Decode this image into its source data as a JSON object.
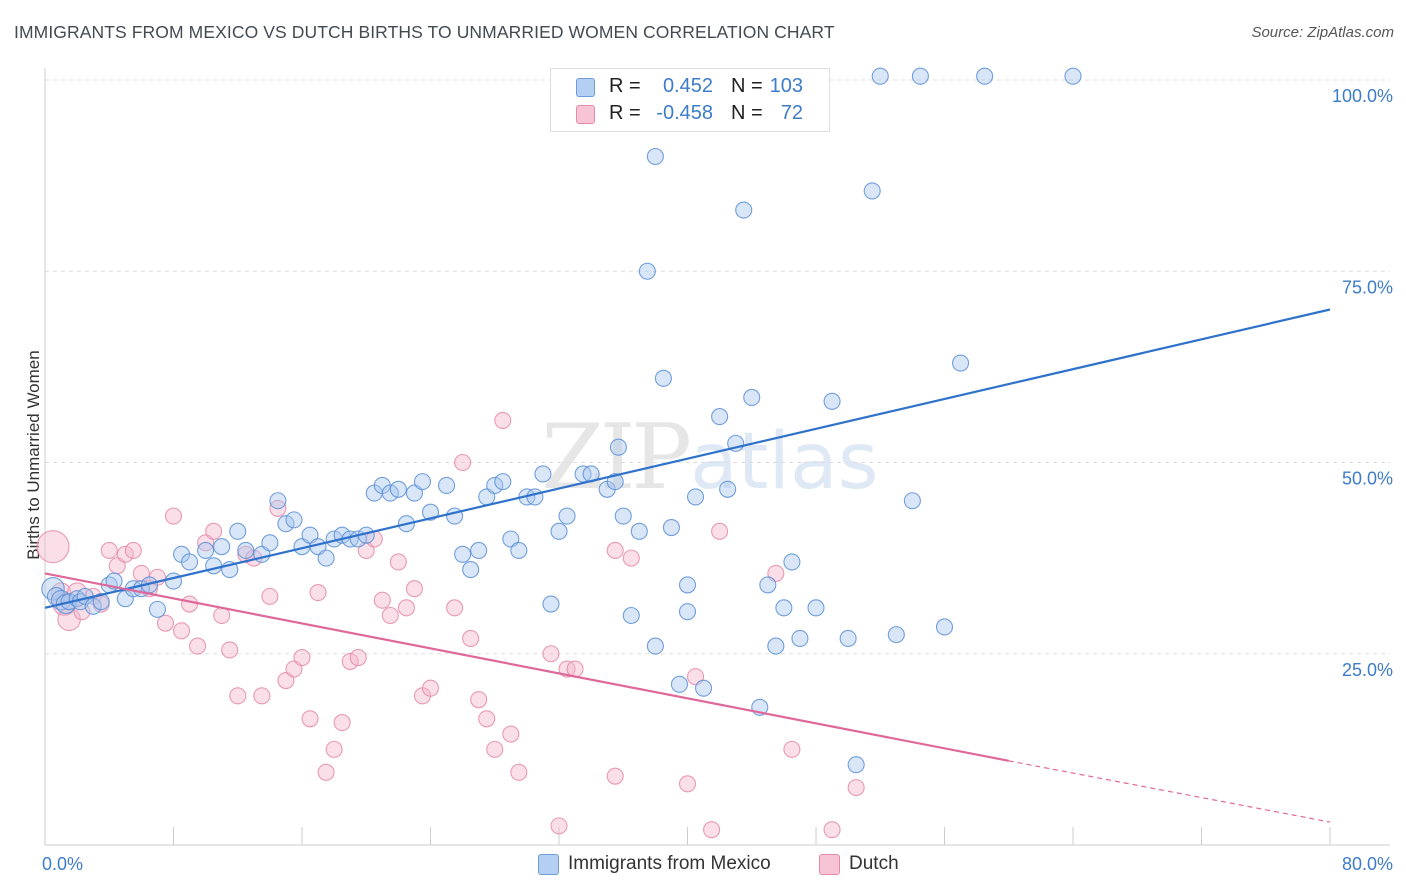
{
  "title": "IMMIGRANTS FROM MEXICO VS DUTCH BIRTHS TO UNMARRIED WOMEN CORRELATION CHART",
  "source": "Source: ZipAtlas.com",
  "watermark": {
    "zip": "ZIP",
    "atlas": "atlas"
  },
  "legend_top": {
    "rows": [
      {
        "r_label": "R =",
        "r_value": "0.452",
        "n_label": "N =",
        "n_value": "103"
      },
      {
        "r_label": "R =",
        "r_value": "-0.458",
        "n_label": "N =",
        "n_value": "72"
      }
    ]
  },
  "legend_bottom": {
    "items": [
      {
        "label": "Immigrants from Mexico"
      },
      {
        "label": "Dutch"
      }
    ]
  },
  "colors": {
    "blue_fill": "#a9c8f0",
    "blue_stroke": "#5b8fd6",
    "blue_line": "#2f72cc",
    "pink_fill": "#f5b8cc",
    "pink_stroke": "#e58aa9",
    "pink_line": "#e0679a",
    "tick_label": "#3d7cc9",
    "grid": "#dddddd"
  },
  "chart_data": {
    "type": "scatter",
    "title": "IMMIGRANTS FROM MEXICO VS DUTCH BIRTHS TO UNMARRIED WOMEN CORRELATION CHART",
    "xlabel": "",
    "ylabel": "Births to Unmarried Women",
    "xlim": [
      0,
      80
    ],
    "ylim": [
      0,
      100
    ],
    "x_tick_labels": [
      "0.0%",
      "80.0%"
    ],
    "y_ticks": [
      25,
      50,
      75,
      100
    ],
    "y_tick_labels": [
      "25.0%",
      "50.0%",
      "75.0%",
      "100.0%"
    ],
    "grid": true,
    "series": [
      {
        "name": "Immigrants from Mexico",
        "trend": {
          "x": [
            0,
            80
          ],
          "y": [
            31.0,
            70.0
          ]
        },
        "points": [
          [
            0.5,
            33.5,
            14
          ],
          [
            0.7,
            32.5,
            11
          ],
          [
            1.0,
            32.0,
            12
          ],
          [
            1.3,
            31.5,
            12
          ],
          [
            1.5,
            31.8,
            10
          ],
          [
            2.0,
            32.2,
            10
          ],
          [
            2.2,
            31.8,
            10
          ],
          [
            2.5,
            32.5,
            10
          ],
          [
            3.0,
            31.2,
            10
          ],
          [
            3.5,
            31.8,
            10
          ],
          [
            4.0,
            34.0,
            10
          ],
          [
            4.3,
            34.5,
            10
          ],
          [
            5.0,
            32.2,
            10
          ],
          [
            5.5,
            33.5,
            10
          ],
          [
            6.0,
            33.5,
            10
          ],
          [
            6.5,
            34.0,
            10
          ],
          [
            7.0,
            30.8,
            10
          ],
          [
            8.0,
            34.5,
            10
          ],
          [
            8.5,
            38.0,
            10
          ],
          [
            9.0,
            37.0,
            10
          ],
          [
            10.0,
            38.5,
            10
          ],
          [
            10.5,
            36.5,
            10
          ],
          [
            11.0,
            39.0,
            10
          ],
          [
            11.5,
            36.0,
            10
          ],
          [
            12.0,
            41.0,
            10
          ],
          [
            12.5,
            38.5,
            10
          ],
          [
            13.5,
            38.0,
            10
          ],
          [
            14.0,
            39.5,
            10
          ],
          [
            14.5,
            45.0,
            10
          ],
          [
            15.0,
            42.0,
            10
          ],
          [
            15.5,
            42.5,
            10
          ],
          [
            16.0,
            39.0,
            10
          ],
          [
            16.5,
            40.5,
            10
          ],
          [
            17.0,
            39.0,
            10
          ],
          [
            17.5,
            37.5,
            10
          ],
          [
            18.0,
            40.0,
            10
          ],
          [
            18.5,
            40.5,
            10
          ],
          [
            19.0,
            40.0,
            10
          ],
          [
            19.5,
            40.0,
            10
          ],
          [
            20.0,
            40.5,
            10
          ],
          [
            20.5,
            46.0,
            10
          ],
          [
            21.0,
            47.0,
            10
          ],
          [
            21.5,
            46.0,
            10
          ],
          [
            22.0,
            46.5,
            10
          ],
          [
            22.5,
            42.0,
            10
          ],
          [
            23.0,
            46.0,
            10
          ],
          [
            23.5,
            47.5,
            10
          ],
          [
            24.0,
            43.5,
            10
          ],
          [
            25.0,
            47.0,
            10
          ],
          [
            25.5,
            43.0,
            10
          ],
          [
            26.0,
            38.0,
            10
          ],
          [
            26.5,
            36.0,
            10
          ],
          [
            27.0,
            38.5,
            10
          ],
          [
            27.5,
            45.5,
            10
          ],
          [
            28.0,
            47.0,
            10
          ],
          [
            28.5,
            47.5,
            10
          ],
          [
            29.0,
            40.0,
            10
          ],
          [
            29.5,
            38.5,
            10
          ],
          [
            30.0,
            45.5,
            10
          ],
          [
            30.5,
            45.5,
            10
          ],
          [
            31.0,
            48.5,
            10
          ],
          [
            31.5,
            31.5,
            10
          ],
          [
            32.0,
            41.0,
            10
          ],
          [
            32.5,
            43.0,
            10
          ],
          [
            33.5,
            48.5,
            10
          ],
          [
            34.0,
            48.5,
            10
          ],
          [
            35.0,
            46.5,
            10
          ],
          [
            35.5,
            47.5,
            10
          ],
          [
            35.7,
            52.0,
            10
          ],
          [
            36.0,
            43.0,
            10
          ],
          [
            36.5,
            30.0,
            10
          ],
          [
            37.0,
            41.0,
            10
          ],
          [
            38.0,
            26.0,
            10
          ],
          [
            38.5,
            61.0,
            10
          ],
          [
            37.5,
            75.0,
            10
          ],
          [
            38.0,
            90.0,
            10
          ],
          [
            39.0,
            41.5,
            10
          ],
          [
            39.5,
            21.0,
            10
          ],
          [
            40.0,
            34.0,
            10
          ],
          [
            40.5,
            45.5,
            10
          ],
          [
            41.0,
            20.5,
            10
          ],
          [
            42.0,
            56.0,
            10
          ],
          [
            42.5,
            46.5,
            10
          ],
          [
            43.0,
            52.5,
            10
          ],
          [
            43.5,
            83.0,
            10
          ],
          [
            44.0,
            58.5,
            10
          ],
          [
            44.5,
            18.0,
            10
          ],
          [
            45.0,
            34.0,
            10
          ],
          [
            45.5,
            26.0,
            10
          ],
          [
            46.0,
            31.0,
            10
          ],
          [
            46.5,
            37.0,
            10
          ],
          [
            47.0,
            27.0,
            10
          ],
          [
            48.0,
            31.0,
            10
          ],
          [
            49.0,
            58.0,
            10
          ],
          [
            50.0,
            27.0,
            10
          ],
          [
            50.5,
            10.5,
            10
          ],
          [
            51.5,
            85.5,
            10
          ],
          [
            52.0,
            100.5,
            10
          ],
          [
            53.0,
            27.5,
            10
          ],
          [
            54.0,
            45.0,
            10
          ],
          [
            54.5,
            100.5,
            10
          ],
          [
            56.0,
            28.5,
            10
          ],
          [
            57.0,
            63.0,
            10
          ],
          [
            58.5,
            100.5,
            10
          ],
          [
            64.0,
            100.5,
            10
          ],
          [
            40.0,
            30.5,
            10
          ]
        ]
      },
      {
        "name": "Dutch",
        "trend": {
          "x": [
            0,
            60
          ],
          "y": [
            35.5,
            11.0
          ]
        },
        "trend_dashed": {
          "x": [
            60,
            80
          ],
          "y": [
            11.0,
            3.0
          ]
        },
        "points": [
          [
            0.5,
            39.0,
            20
          ],
          [
            1.0,
            33.0,
            12
          ],
          [
            1.2,
            31.5,
            14
          ],
          [
            1.5,
            29.5,
            14
          ],
          [
            2.0,
            33.0,
            12
          ],
          [
            2.3,
            30.5,
            10
          ],
          [
            3.0,
            32.5,
            10
          ],
          [
            3.5,
            31.5,
            10
          ],
          [
            4.0,
            38.5,
            10
          ],
          [
            4.5,
            36.5,
            10
          ],
          [
            5.0,
            38.0,
            10
          ],
          [
            5.5,
            38.5,
            10
          ],
          [
            6.0,
            35.5,
            10
          ],
          [
            6.5,
            33.5,
            10
          ],
          [
            7.0,
            35.0,
            10
          ],
          [
            7.5,
            29.0,
            10
          ],
          [
            8.0,
            43.0,
            10
          ],
          [
            8.5,
            28.0,
            10
          ],
          [
            9.0,
            31.5,
            10
          ],
          [
            9.5,
            26.0,
            10
          ],
          [
            10.0,
            39.5,
            10
          ],
          [
            10.5,
            41.0,
            10
          ],
          [
            11.0,
            30.0,
            10
          ],
          [
            11.5,
            25.5,
            10
          ],
          [
            12.0,
            19.5,
            10
          ],
          [
            12.5,
            38.0,
            10
          ],
          [
            13.0,
            37.5,
            10
          ],
          [
            13.5,
            19.5,
            10
          ],
          [
            14.0,
            32.5,
            10
          ],
          [
            14.5,
            44.0,
            10
          ],
          [
            15.0,
            21.5,
            10
          ],
          [
            15.5,
            23.0,
            10
          ],
          [
            16.0,
            24.5,
            10
          ],
          [
            16.5,
            16.5,
            10
          ],
          [
            17.0,
            33.0,
            10
          ],
          [
            17.5,
            9.5,
            10
          ],
          [
            18.0,
            12.5,
            10
          ],
          [
            18.5,
            16.0,
            10
          ],
          [
            19.0,
            24.0,
            10
          ],
          [
            19.5,
            24.5,
            10
          ],
          [
            20.0,
            38.5,
            10
          ],
          [
            20.5,
            40.0,
            10
          ],
          [
            21.0,
            32.0,
            10
          ],
          [
            21.5,
            30.0,
            10
          ],
          [
            22.0,
            37.0,
            10
          ],
          [
            22.5,
            31.0,
            10
          ],
          [
            23.0,
            33.5,
            10
          ],
          [
            23.5,
            19.5,
            10
          ],
          [
            24.0,
            20.5,
            10
          ],
          [
            25.5,
            31.0,
            10
          ],
          [
            26.0,
            50.0,
            10
          ],
          [
            26.5,
            27.0,
            10
          ],
          [
            27.0,
            19.0,
            10
          ],
          [
            27.5,
            16.5,
            10
          ],
          [
            28.0,
            12.5,
            10
          ],
          [
            28.5,
            55.5,
            10
          ],
          [
            29.0,
            14.5,
            10
          ],
          [
            29.5,
            9.5,
            10
          ],
          [
            31.5,
            25.0,
            10
          ],
          [
            32.0,
            2.5,
            10
          ],
          [
            32.5,
            23.0,
            10
          ],
          [
            33.0,
            23.0,
            10
          ],
          [
            35.5,
            38.5,
            10
          ],
          [
            35.5,
            9.0,
            10
          ],
          [
            36.5,
            37.5,
            10
          ],
          [
            40.0,
            8.0,
            10
          ],
          [
            40.5,
            22.0,
            10
          ],
          [
            41.5,
            2.0,
            10
          ],
          [
            42.0,
            41.0,
            10
          ],
          [
            45.5,
            35.5,
            10
          ],
          [
            46.5,
            12.5,
            10
          ],
          [
            49.0,
            2.0,
            10
          ],
          [
            50.5,
            7.5,
            10
          ]
        ]
      }
    ]
  }
}
